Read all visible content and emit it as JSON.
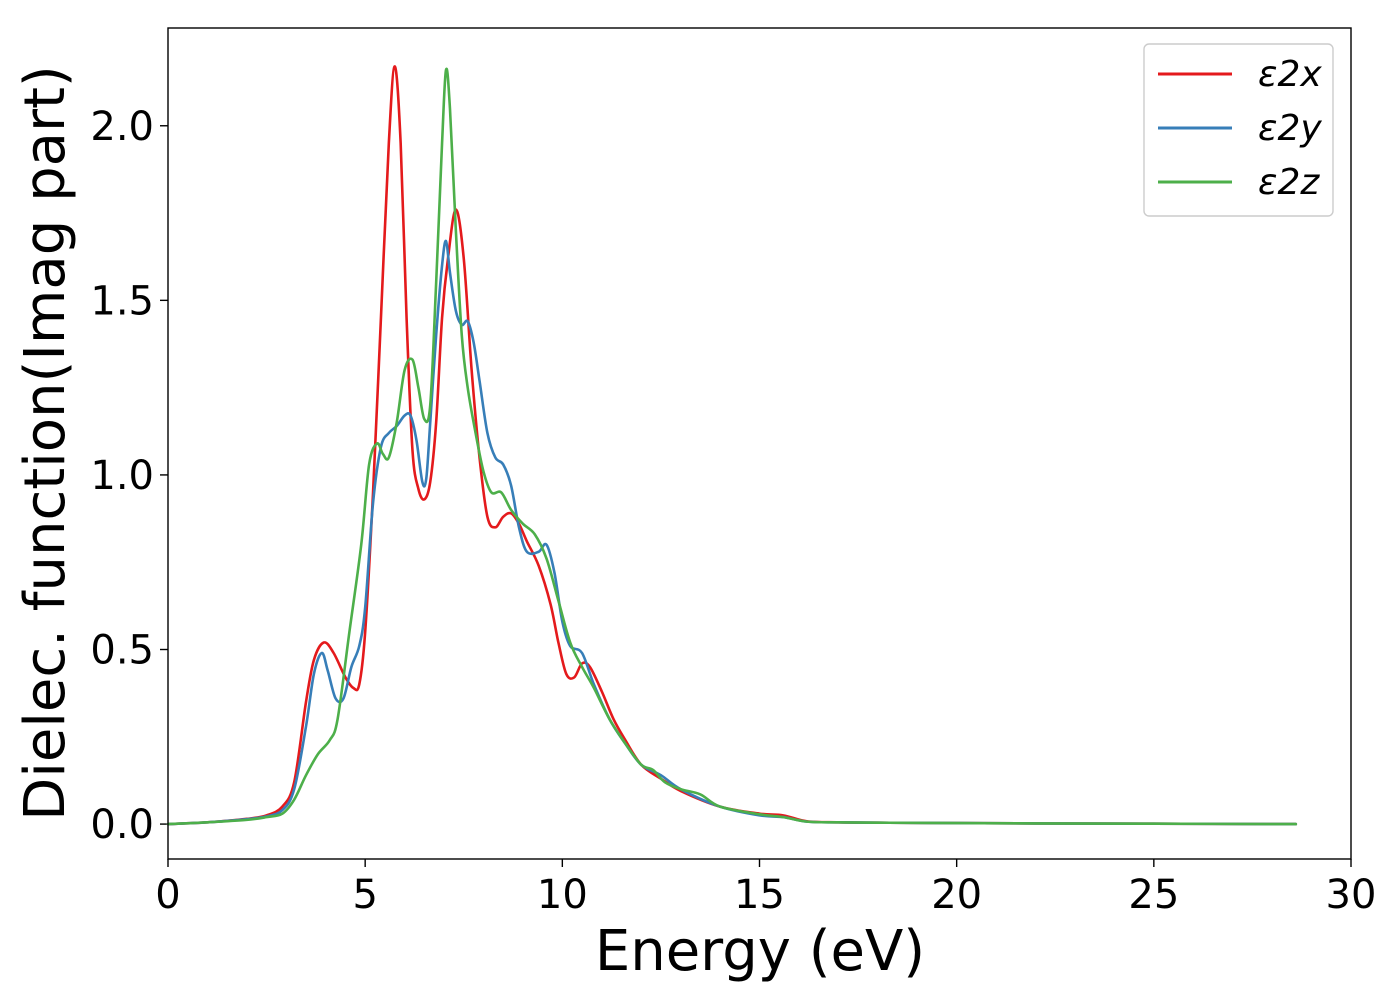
{
  "chart_data": {
    "type": "line",
    "title": "",
    "xlabel": "Energy (eV)",
    "ylabel": "Dielec. function(Imag part)",
    "xlim": [
      0,
      30
    ],
    "ylim": [
      -0.1,
      2.28
    ],
    "xticks": [
      0,
      5,
      10,
      15,
      20,
      25,
      30
    ],
    "xtick_labels": [
      "0",
      "5",
      "10",
      "15",
      "20",
      "25",
      "30"
    ],
    "yticks": [
      0.0,
      0.5,
      1.0,
      1.5,
      2.0
    ],
    "ytick_labels": [
      "0.0",
      "0.5",
      "1.0",
      "1.5",
      "2.0"
    ],
    "grid": false,
    "legend_position": "top-right",
    "series": [
      {
        "name": "ε2x",
        "color": "#e41a1c",
        "x": [
          0,
          1,
          2,
          2.5,
          2.9,
          3.2,
          3.5,
          3.7,
          3.95,
          4.2,
          4.5,
          4.7,
          4.85,
          5.0,
          5.2,
          5.4,
          5.6,
          5.75,
          5.9,
          6.05,
          6.2,
          6.35,
          6.5,
          6.65,
          6.8,
          6.95,
          7.1,
          7.3,
          7.5,
          7.7,
          7.9,
          8.1,
          8.3,
          8.5,
          8.7,
          8.9,
          9.1,
          9.4,
          9.7,
          9.9,
          10.1,
          10.3,
          10.5,
          10.7,
          11.0,
          11.3,
          11.6,
          12.0,
          12.5,
          13.0,
          14.0,
          15.0,
          15.6,
          16.2,
          17.0,
          18.0,
          20.0,
          22.0,
          25.0,
          28.6
        ],
        "y": [
          0.0,
          0.005,
          0.015,
          0.025,
          0.05,
          0.12,
          0.35,
          0.47,
          0.52,
          0.49,
          0.42,
          0.39,
          0.4,
          0.55,
          0.95,
          1.45,
          1.95,
          2.17,
          1.95,
          1.45,
          1.07,
          0.96,
          0.93,
          0.98,
          1.15,
          1.45,
          1.62,
          1.76,
          1.62,
          1.3,
          1.05,
          0.88,
          0.85,
          0.88,
          0.89,
          0.86,
          0.81,
          0.74,
          0.63,
          0.52,
          0.43,
          0.42,
          0.46,
          0.45,
          0.38,
          0.3,
          0.24,
          0.17,
          0.13,
          0.095,
          0.05,
          0.03,
          0.025,
          0.008,
          0.005,
          0.004,
          0.003,
          0.002,
          0.001,
          0.0
        ]
      },
      {
        "name": "ε2y",
        "color": "#377eb8",
        "x": [
          0,
          1,
          2,
          2.5,
          2.9,
          3.2,
          3.5,
          3.7,
          3.9,
          4.05,
          4.25,
          4.45,
          4.65,
          4.85,
          5.0,
          5.2,
          5.4,
          5.6,
          5.8,
          6.0,
          6.15,
          6.3,
          6.45,
          6.55,
          6.65,
          6.8,
          6.95,
          7.05,
          7.15,
          7.3,
          7.45,
          7.6,
          7.75,
          7.9,
          8.1,
          8.3,
          8.5,
          8.7,
          8.9,
          9.1,
          9.4,
          9.6,
          9.8,
          10.0,
          10.2,
          10.5,
          10.8,
          11.2,
          11.6,
          12.0,
          12.5,
          13.0,
          14.0,
          15.0,
          15.6,
          16.2,
          17.0,
          18.0,
          20.0,
          22.0,
          25.0,
          28.6
        ],
        "y": [
          0.0,
          0.005,
          0.014,
          0.022,
          0.04,
          0.1,
          0.28,
          0.43,
          0.49,
          0.44,
          0.36,
          0.36,
          0.45,
          0.51,
          0.62,
          0.92,
          1.08,
          1.12,
          1.14,
          1.17,
          1.17,
          1.1,
          0.98,
          0.99,
          1.15,
          1.4,
          1.6,
          1.67,
          1.58,
          1.47,
          1.43,
          1.44,
          1.38,
          1.27,
          1.12,
          1.05,
          1.03,
          0.97,
          0.85,
          0.78,
          0.78,
          0.8,
          0.72,
          0.58,
          0.51,
          0.49,
          0.4,
          0.3,
          0.23,
          0.17,
          0.14,
          0.1,
          0.05,
          0.025,
          0.02,
          0.007,
          0.005,
          0.004,
          0.003,
          0.002,
          0.001,
          0.0
        ]
      },
      {
        "name": "ε2z",
        "color": "#4daf4a",
        "x": [
          0,
          1,
          2,
          2.5,
          2.9,
          3.2,
          3.5,
          3.8,
          4.1,
          4.3,
          4.6,
          4.9,
          5.1,
          5.3,
          5.45,
          5.6,
          5.8,
          6.0,
          6.2,
          6.35,
          6.5,
          6.65,
          6.8,
          6.95,
          7.05,
          7.15,
          7.3,
          7.45,
          7.6,
          7.8,
          8.0,
          8.2,
          8.45,
          8.7,
          9.0,
          9.3,
          9.6,
          9.9,
          10.2,
          10.5,
          10.8,
          11.2,
          11.6,
          12.0,
          12.3,
          12.6,
          13.0,
          13.5,
          14.0,
          15.0,
          15.6,
          16.2,
          17.0,
          18.0,
          20.0,
          22.0,
          25.0,
          28.6
        ],
        "y": [
          0.0,
          0.005,
          0.012,
          0.02,
          0.03,
          0.07,
          0.14,
          0.2,
          0.24,
          0.3,
          0.55,
          0.8,
          1.03,
          1.09,
          1.06,
          1.05,
          1.15,
          1.3,
          1.33,
          1.25,
          1.16,
          1.2,
          1.55,
          1.95,
          2.16,
          2.05,
          1.7,
          1.4,
          1.25,
          1.12,
          1.01,
          0.95,
          0.95,
          0.9,
          0.86,
          0.83,
          0.76,
          0.64,
          0.52,
          0.45,
          0.39,
          0.3,
          0.23,
          0.17,
          0.155,
          0.12,
          0.1,
          0.085,
          0.05,
          0.028,
          0.02,
          0.007,
          0.005,
          0.004,
          0.003,
          0.002,
          0.001,
          0.0
        ]
      }
    ]
  }
}
